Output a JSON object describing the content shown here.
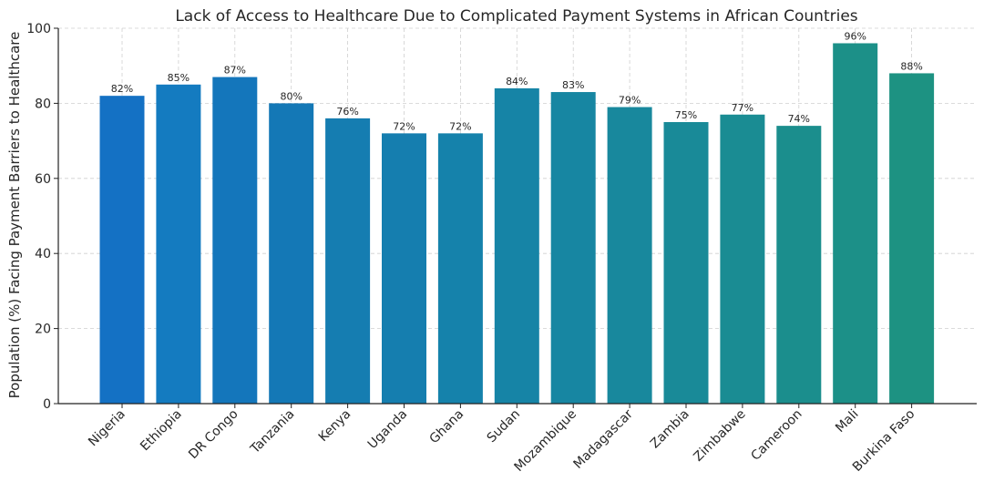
{
  "chart_data": {
    "type": "bar",
    "title": "Lack of Access to Healthcare Due to Complicated Payment Systems in African Countries",
    "xlabel": "",
    "ylabel": "Population (%) Facing Payment Barriers to Healthcare",
    "ylim": [
      0,
      100
    ],
    "yticks": [
      0,
      20,
      40,
      60,
      80,
      100
    ],
    "grid": true,
    "value_suffix": "%",
    "categories": [
      "Nigeria",
      "Ethiopia",
      "DR Congo",
      "Tanzania",
      "Kenya",
      "Uganda",
      "Ghana",
      "Sudan",
      "Mozambique",
      "Madagascar",
      "Zambia",
      "Zimbabwe",
      "Cameroon",
      "Mali",
      "Burkina Faso"
    ],
    "values": [
      82,
      85,
      87,
      80,
      76,
      72,
      72,
      84,
      83,
      79,
      75,
      77,
      74,
      96,
      88
    ],
    "bar_colors": [
      "#1471c4",
      "#147bc0",
      "#1476bb",
      "#1478b6",
      "#157db1",
      "#157eaf",
      "#1582ab",
      "#1684a6",
      "#1786a2",
      "#18889d",
      "#198a98",
      "#1a8c93",
      "#1b8e8d",
      "#1c9088",
      "#1d9282"
    ]
  }
}
